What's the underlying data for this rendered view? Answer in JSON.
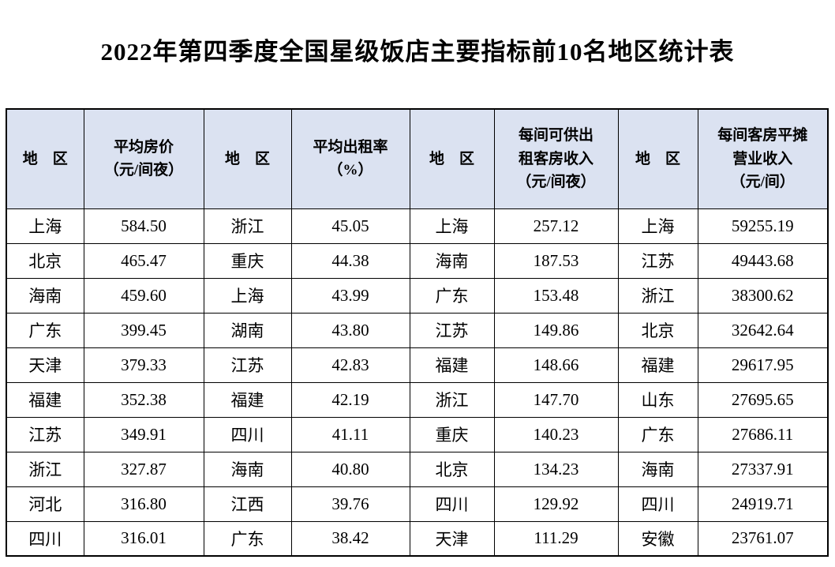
{
  "title": "2022年第四季度全国星级饭店主要指标前10名地区统计表",
  "colors": {
    "page_bg": "#ffffff",
    "header_bg": "#dbe2f1",
    "border": "#000000",
    "text": "#000000"
  },
  "table": {
    "column_names": [
      "region-1",
      "avg-room-price",
      "region-2",
      "avg-occupancy-rate",
      "region-3",
      "revenue-per-available-room",
      "region-4",
      "operating-revenue-per-room"
    ],
    "headers": [
      "地　区",
      "平均房价\n（元/间夜）",
      "地　区",
      "平均出租率\n（%）",
      "地　区",
      "每间可供出\n租客房收入\n（元/间夜）",
      "地　区",
      "每间客房平摊\n营业收入\n（元/间）"
    ],
    "rows": [
      [
        "上海",
        "584.50",
        "浙江",
        "45.05",
        "上海",
        "257.12",
        "上海",
        "59255.19"
      ],
      [
        "北京",
        "465.47",
        "重庆",
        "44.38",
        "海南",
        "187.53",
        "江苏",
        "49443.68"
      ],
      [
        "海南",
        "459.60",
        "上海",
        "43.99",
        "广东",
        "153.48",
        "浙江",
        "38300.62"
      ],
      [
        "广东",
        "399.45",
        "湖南",
        "43.80",
        "江苏",
        "149.86",
        "北京",
        "32642.64"
      ],
      [
        "天津",
        "379.33",
        "江苏",
        "42.83",
        "福建",
        "148.66",
        "福建",
        "29617.95"
      ],
      [
        "福建",
        "352.38",
        "福建",
        "42.19",
        "浙江",
        "147.70",
        "山东",
        "27695.65"
      ],
      [
        "江苏",
        "349.91",
        "四川",
        "41.11",
        "重庆",
        "140.23",
        "广东",
        "27686.11"
      ],
      [
        "浙江",
        "327.87",
        "海南",
        "40.80",
        "北京",
        "134.23",
        "海南",
        "27337.91"
      ],
      [
        "河北",
        "316.80",
        "江西",
        "39.76",
        "四川",
        "129.92",
        "四川",
        "24919.71"
      ],
      [
        "四川",
        "316.01",
        "广东",
        "38.42",
        "天津",
        "111.29",
        "安徽",
        "23761.07"
      ]
    ]
  }
}
